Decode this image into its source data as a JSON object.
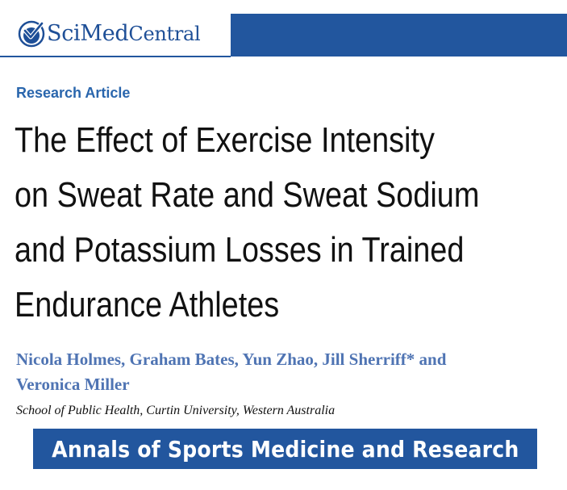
{
  "publisher": {
    "logo_prefix": "Sci",
    "logo_middle": "Med",
    "logo_suffix": "Central",
    "brand_color": "#22569e",
    "logo_icon": "checkmark-circle-icon"
  },
  "article": {
    "type": "Research Article",
    "title_lines": [
      "The Effect of Exercise Intensity",
      "on Sweat Rate and Sweat Sodium",
      "and Potassium Losses in Trained",
      "Endurance Athletes"
    ],
    "author_lines": [
      "Nicola Holmes, Graham Bates, Yun Zhao, Jill Sherriff* and",
      "Veronica Miller"
    ],
    "affiliation": "School of Public Health, Curtin University, Western Australia"
  },
  "journal": {
    "name": "Annals of Sports Medicine and Research"
  }
}
